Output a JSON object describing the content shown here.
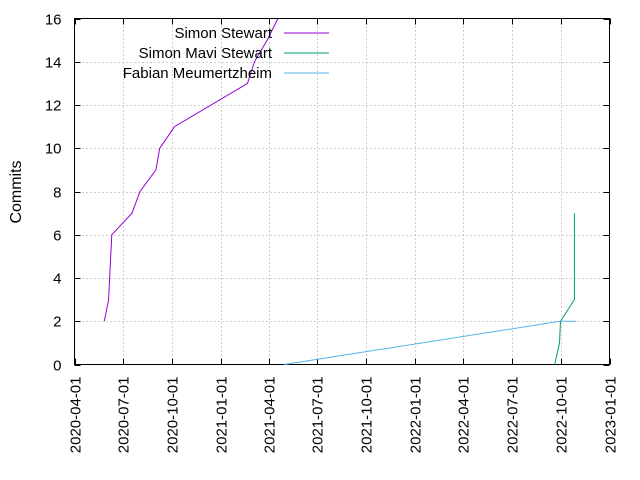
{
  "chart_data": {
    "type": "line",
    "title": "",
    "xlabel": "",
    "ylabel": "Commits",
    "x_type": "date",
    "xlim": [
      "2020-04-01",
      "2023-01-01"
    ],
    "ylim": [
      0,
      16
    ],
    "x_ticks": [
      "2020-04-01",
      "2020-07-01",
      "2020-10-01",
      "2021-01-01",
      "2021-04-01",
      "2021-07-01",
      "2021-10-01",
      "2022-01-01",
      "2022-04-01",
      "2022-07-01",
      "2022-10-01",
      "2023-01-01"
    ],
    "y_ticks": [
      "0",
      "2",
      "4",
      "6",
      "8",
      "10",
      "12",
      "14",
      "16"
    ],
    "grid": true,
    "grid_style": "dotted",
    "legend_position": "top-left",
    "series": [
      {
        "name": "Simon Stewart",
        "color": "#9400d3",
        "points": [
          {
            "x": "2020-05-27",
            "y": 2
          },
          {
            "x": "2020-06-04",
            "y": 3
          },
          {
            "x": "2020-06-08",
            "y": 5
          },
          {
            "x": "2020-06-10",
            "y": 6
          },
          {
            "x": "2020-07-18",
            "y": 7
          },
          {
            "x": "2020-08-02",
            "y": 8
          },
          {
            "x": "2020-09-01",
            "y": 9
          },
          {
            "x": "2020-09-08",
            "y": 10
          },
          {
            "x": "2020-10-06",
            "y": 11
          },
          {
            "x": "2021-02-20",
            "y": 13
          },
          {
            "x": "2021-03-05",
            "y": 14
          },
          {
            "x": "2021-03-29",
            "y": 15
          },
          {
            "x": "2021-04-18",
            "y": 16
          }
        ]
      },
      {
        "name": "Simon Mavi Stewart",
        "color": "#009e73",
        "points": [
          {
            "x": "2022-09-20",
            "y": 0
          },
          {
            "x": "2022-09-29",
            "y": 1
          },
          {
            "x": "2022-10-01",
            "y": 2
          },
          {
            "x": "2022-10-27",
            "y": 3
          },
          {
            "x": "2022-10-27",
            "y": 7
          }
        ]
      },
      {
        "name": "Fabian Meumertzheim",
        "color": "#56b4e9",
        "points": [
          {
            "x": "2021-04-30",
            "y": 0
          },
          {
            "x": "2022-09-30",
            "y": 2
          },
          {
            "x": "2022-10-31",
            "y": 2
          }
        ]
      }
    ]
  }
}
